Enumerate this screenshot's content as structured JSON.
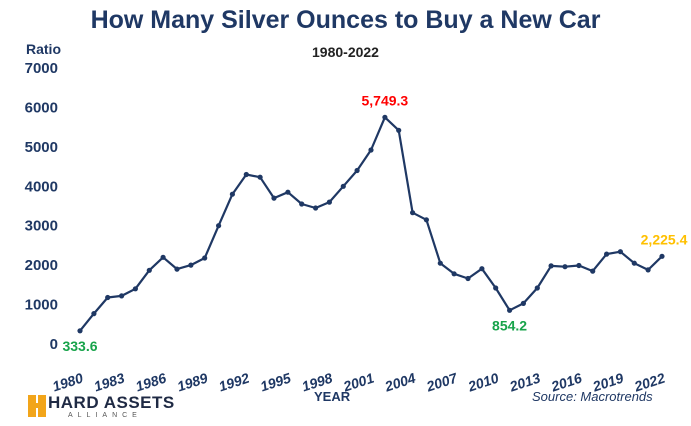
{
  "header": {
    "title": "How Many Silver Ounces to Buy a New Car",
    "subtitle": "1980-2022"
  },
  "footer": {
    "source": "Source: Macrotrends",
    "logo_main": "HARD ASSETS",
    "logo_sub": "ALLIANCE"
  },
  "chart_data": {
    "type": "line",
    "title": "How Many Silver Ounces to Buy a New Car",
    "subtitle": "1980-2022",
    "xlabel": "YEAR",
    "ylabel": "Ratio",
    "ylim": [
      0,
      7000
    ],
    "yticks": [
      "0",
      "1000",
      "2000",
      "3000",
      "4000",
      "5000",
      "6000",
      "7000"
    ],
    "xticks": [
      "1980",
      "1983",
      "1986",
      "1989",
      "1992",
      "1995",
      "1998",
      "2001",
      "2004",
      "2007",
      "2010",
      "2013",
      "2016",
      "2019",
      "2022"
    ],
    "grid": false,
    "line_color": "#1f3864",
    "x": [
      1980,
      1981,
      1982,
      1983,
      1984,
      1985,
      1986,
      1987,
      1988,
      1989,
      1990,
      1991,
      1992,
      1993,
      1994,
      1995,
      1996,
      1997,
      1998,
      1999,
      2000,
      2001,
      2002,
      2003,
      2004,
      2005,
      2006,
      2007,
      2008,
      2009,
      2010,
      2011,
      2012,
      2013,
      2014,
      2015,
      2016,
      2017,
      2018,
      2019,
      2020,
      2021,
      2022
    ],
    "values": [
      333.6,
      770,
      1180,
      1220,
      1400,
      1870,
      2200,
      1900,
      2000,
      2180,
      3000,
      3800,
      4300,
      4230,
      3700,
      3850,
      3550,
      3450,
      3600,
      4000,
      4400,
      4920,
      5749.3,
      5420,
      3330,
      3150,
      2050,
      1780,
      1660,
      1910,
      1420,
      854.2,
      1030,
      1420,
      1980,
      1960,
      1990,
      1850,
      2280,
      2340,
      2050,
      1880,
      2225.4
    ],
    "annotations": [
      {
        "year": 1980,
        "text": "333.6",
        "color": "#17a34a",
        "position": "below"
      },
      {
        "year": 2002,
        "text": "5,749.3",
        "color": "#ff0000",
        "position": "above"
      },
      {
        "year": 2011,
        "text": "854.2",
        "color": "#17a34a",
        "position": "below"
      },
      {
        "year": 2022,
        "text": "2,225.4",
        "color": "#ffc000",
        "position": "above"
      }
    ]
  }
}
